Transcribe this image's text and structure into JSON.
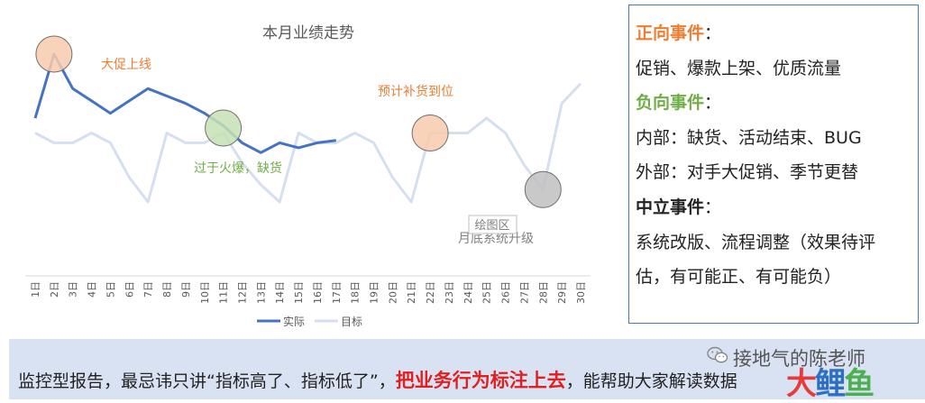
{
  "chart_data": {
    "type": "line",
    "title": "本月业绩走势",
    "categories": [
      "1日",
      "2日",
      "3日",
      "4日",
      "5日",
      "6日",
      "7日",
      "8日",
      "9日",
      "10日",
      "11日",
      "12日",
      "13日",
      "14日",
      "15日",
      "16日",
      "17日",
      "18日",
      "19日",
      "20日",
      "21日",
      "22日",
      "23日",
      "24日",
      "25日",
      "26日",
      "27日",
      "28日",
      "29日",
      "30日"
    ],
    "series": [
      {
        "name": "实际",
        "color": "#4472c4",
        "values": [
          34,
          60,
          46,
          41,
          36,
          41,
          46,
          43,
          40,
          36,
          31,
          24,
          20,
          24,
          22,
          24,
          25,
          null,
          null,
          null,
          null,
          null,
          null,
          null,
          null,
          null,
          null,
          null,
          null,
          null
        ]
      },
      {
        "name": "目标",
        "color": "#d6dff0",
        "values": [
          28,
          24,
          24,
          28,
          24,
          10,
          0,
          28,
          24,
          24,
          28,
          16,
          7,
          0,
          28,
          24,
          24,
          28,
          24,
          10,
          0,
          28,
          28,
          28,
          34,
          28,
          15,
          5,
          40,
          48
        ]
      }
    ],
    "grid": false,
    "legend_position": "bottom",
    "annotations": [
      {
        "text": "大促上线",
        "category": "2日",
        "value": 60,
        "color": "#ed7d31",
        "circle": "#f8cbad"
      },
      {
        "text": "过于火爆，缺货",
        "category": "11日",
        "value": 30,
        "color": "#70ad47",
        "circle": "#c5e0b4"
      },
      {
        "text": "预计补货到位",
        "category": "22日",
        "value": 28,
        "color": "#ed7d31",
        "circle": "#f8cbad"
      },
      {
        "text": "月底系统升级",
        "category": "28日",
        "value": 5,
        "color": "#808080",
        "circle": "#bfbfbf"
      }
    ],
    "plot_area_label": "绘图区"
  },
  "panel": {
    "positive_title": "正向事件",
    "positive_items": "促销、爆款上架、优质流量",
    "negative_title": "负向事件",
    "internal": "内部：缺货、活动结束、BUG",
    "external": "外部：对手大促销、季节更替",
    "neutral_title": "中立事件",
    "neutral_line1": "系统改版、流程调整（效果待评",
    "neutral_line2": "估，有可能正、有可能负）",
    "colon": "：",
    "colors": {
      "positive": "#ed7d31",
      "negative": "#70ad47",
      "neutral": "#222222"
    }
  },
  "footer": {
    "text_before": "监控型报告，最忌讳只讲“指标高了、指标低了”，",
    "highlight": "把业务行为标注上去",
    "text_after": "，能帮助大家解读数据"
  },
  "watermark": {
    "brand": "接地气的陈老师",
    "logo_a": "大",
    "logo_b": "鲤",
    "logo_c": "鱼"
  }
}
